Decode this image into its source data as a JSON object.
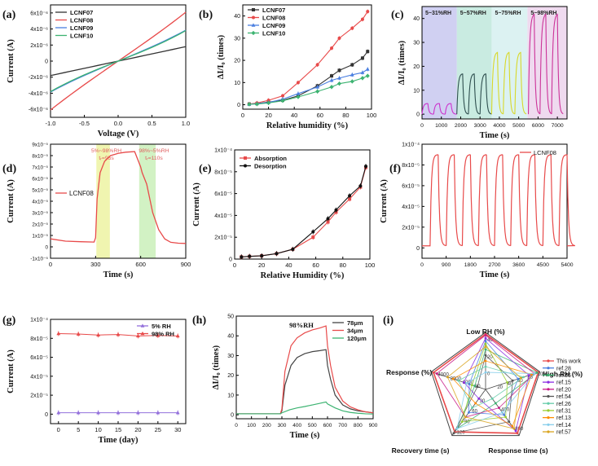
{
  "figure_title": "Humidity sensing performance of LCNF films",
  "chart_data": [
    {
      "id": "a",
      "panel_label": "(a)",
      "type": "line",
      "xlabel": "Voltage (V)",
      "ylabel": "Current (A)",
      "xlim": [
        -1.0,
        1.0
      ],
      "ylim": [
        -7e-06,
        7e-06
      ],
      "x_ticks": [
        "-1.0",
        "-0.5",
        "0.0",
        "0.5",
        "1.0"
      ],
      "y_ticks": [
        "-6x10⁻⁶",
        "-4x10⁻⁶",
        "-2x10⁻⁶",
        "0",
        "2x10⁻⁶",
        "4x10⁻⁶",
        "6x10⁻⁶"
      ],
      "legend_position": "top-left",
      "series": [
        {
          "name": "LCNF07",
          "color": "#333333",
          "slope": 1.8e-06
        },
        {
          "name": "LCNF08",
          "color": "#e84a4a",
          "slope": 5.8e-06
        },
        {
          "name": "LCNF09",
          "color": "#4a7fe0",
          "slope": 3.5e-06
        },
        {
          "name": "LCNF10",
          "color": "#3cb371",
          "slope": 3.3e-06
        }
      ]
    },
    {
      "id": "b",
      "panel_label": "(b)",
      "type": "line",
      "xlabel": "Relative humidity (%)",
      "ylabel": "ΔI/I₀ (times)",
      "xlim": [
        0,
        100
      ],
      "ylim": [
        -2,
        45
      ],
      "x_ticks": [
        "0",
        "20",
        "40",
        "60",
        "80",
        "100"
      ],
      "y_ticks": [
        "0",
        "10",
        "20",
        "30",
        "40"
      ],
      "legend_position": "top-left",
      "x": [
        5,
        11,
        20,
        31,
        43,
        58,
        69,
        75,
        85,
        93,
        97
      ],
      "series": [
        {
          "name": "LCNF07",
          "color": "#333333",
          "values": [
            0.3,
            0.5,
            1.2,
            2.0,
            4.0,
            8.5,
            13.0,
            15.5,
            18.0,
            21.0,
            24.0
          ]
        },
        {
          "name": "LCNF08",
          "color": "#e84a4a",
          "values": [
            0.3,
            0.8,
            2.0,
            4.0,
            10.0,
            18.0,
            25.5,
            30.0,
            34.5,
            38.5,
            42.0
          ]
        },
        {
          "name": "LCNF09",
          "color": "#4a7fe0",
          "values": [
            0.2,
            0.5,
            1.0,
            2.5,
            5.0,
            8.0,
            11.0,
            12.0,
            13.5,
            14.5,
            16.0
          ]
        },
        {
          "name": "LCNF10",
          "color": "#3cb371",
          "values": [
            0.2,
            0.3,
            0.8,
            1.8,
            3.5,
            6.0,
            8.0,
            9.5,
            10.5,
            12.0,
            13.0
          ]
        }
      ]
    },
    {
      "id": "c",
      "panel_label": "(c)",
      "type": "line",
      "xlabel": "Time (s)",
      "ylabel": "ΔI/I₀ (times)",
      "xlim": [
        0,
        7500
      ],
      "ylim": [
        -2,
        45
      ],
      "x_ticks": [
        "0",
        "1000",
        "2000",
        "3000",
        "4000",
        "5000",
        "6000",
        "7000"
      ],
      "y_ticks": [
        "0",
        "10",
        "20",
        "30",
        "40"
      ],
      "regions": [
        {
          "label": "5~31%RH",
          "x_start": 0,
          "x_end": 1800,
          "color": "#c8c8f0"
        },
        {
          "label": "5~57%RH",
          "x_start": 1800,
          "x_end": 3600,
          "color": "#bfe8dc"
        },
        {
          "label": "5~75%RH",
          "x_start": 3600,
          "x_end": 5450,
          "color": "#d6f0f0"
        },
        {
          "label": "5~98%RH",
          "x_start": 5450,
          "x_end": 7500,
          "color": "#ecd4ec"
        }
      ],
      "cycles": [
        {
          "start": 0,
          "period": 600,
          "count": 3,
          "peak": 4.5,
          "color": "#cc33cc"
        },
        {
          "start": 1800,
          "period": 600,
          "count": 3,
          "peak": 17,
          "color": "#2f4f4f"
        },
        {
          "start": 3600,
          "period": 600,
          "count": 3,
          "peak": 26,
          "color": "#d8d82a"
        },
        {
          "start": 5500,
          "period": 600,
          "count": 3,
          "peak": 42,
          "color": "#cc3399"
        }
      ]
    },
    {
      "id": "d",
      "panel_label": "(d)",
      "type": "line",
      "xlabel": "Time (s)",
      "ylabel": "Current (A)",
      "xlim": [
        0,
        900
      ],
      "ylim": [
        -1e-05,
        9e-05
      ],
      "x_ticks": [
        "0",
        "300",
        "600",
        "900"
      ],
      "y_ticks": [
        "-1x10⁻⁵",
        "0",
        "1x10⁻⁵",
        "2x10⁻⁵",
        "3x10⁻⁵",
        "4x10⁻⁵",
        "5x10⁻⁵",
        "6x10⁻⁵",
        "7x10⁻⁵",
        "8x10⁻⁵",
        "9x10⁻⁵"
      ],
      "series_name": "LCNF08",
      "legend_position": "center-left",
      "annotations": [
        {
          "label": "5%~98%RH",
          "sub": "tᵣ=95s",
          "x_start": 305,
          "x_end": 395
        },
        {
          "label": "98%~5%RH",
          "sub": "tᵣ=110s",
          "x_start": 590,
          "x_end": 700
        }
      ],
      "x": [
        0,
        100,
        200,
        290,
        300,
        310,
        330,
        360,
        400,
        450,
        500,
        560,
        600,
        610,
        640,
        680,
        720,
        760,
        800,
        850,
        900
      ],
      "values": [
        7e-06,
        5e-06,
        4.5e-06,
        4.2e-06,
        8e-06,
        4.2e-05,
        6.5e-05,
        7.5e-05,
        8e-05,
        8.2e-05,
        8.3e-05,
        8.35e-05,
        7e-05,
        6.5e-05,
        5.5e-05,
        3e-05,
        1.5e-05,
        7e-06,
        4e-06,
        3.2e-06,
        3e-06
      ]
    },
    {
      "id": "e",
      "panel_label": "(e)",
      "type": "line",
      "xlabel": "Relative Humidity (%)",
      "ylabel": "Current (A)",
      "xlim": [
        0,
        100
      ],
      "ylim": [
        0,
        0.0001
      ],
      "x_ticks": [
        "0",
        "20",
        "40",
        "60",
        "80",
        "100"
      ],
      "y_ticks": [
        "0",
        "2x10⁻⁵",
        "4x10⁻⁵",
        "6x10⁻⁵",
        "8x10⁻⁵",
        "1x10⁻⁴"
      ],
      "legend_position": "top-left",
      "x": [
        5,
        11,
        20,
        31,
        43,
        58,
        69,
        75,
        85,
        93,
        97
      ],
      "series": [
        {
          "name": "Absorption",
          "color": "#e84a4a",
          "values": [
            2e-06,
            2.5e-06,
            3e-06,
            5e-06,
            9e-06,
            2e-05,
            3.4e-05,
            4.3e-05,
            5.5e-05,
            6.6e-05,
            8.4e-05
          ]
        },
        {
          "name": "Desorption",
          "color": "#111111",
          "values": [
            2e-06,
            2.5e-06,
            3e-06,
            5e-06,
            9e-06,
            2.5e-05,
            3.7e-05,
            4.5e-05,
            5.8e-05,
            6.7e-05,
            8.5e-05
          ]
        }
      ]
    },
    {
      "id": "f",
      "panel_label": "(f)",
      "type": "line",
      "xlabel": "Time (s)",
      "ylabel": "Current (A)",
      "xlim": [
        0,
        5400
      ],
      "ylim": [
        -1e-05,
        0.0001
      ],
      "x_ticks": [
        "0",
        "900",
        "1800",
        "2700",
        "3600",
        "4500",
        "5400"
      ],
      "y_ticks": [
        "0",
        "2x10⁻⁵",
        "4x10⁻⁵",
        "6x10⁻⁵",
        "8x10⁻⁵",
        "1x10⁻⁴"
      ],
      "series_name": "LCNF08",
      "legend_position": "top-right",
      "cycles": {
        "start": 300,
        "period": 600,
        "count": 9,
        "peak": 9e-05,
        "base": 2e-06
      }
    },
    {
      "id": "g",
      "panel_label": "(g)",
      "type": "line",
      "xlabel": "Time (day)",
      "ylabel": "Current (A)",
      "xlim": [
        -2,
        32
      ],
      "ylim": [
        -1e-05,
        0.0001
      ],
      "x_ticks": [
        "0",
        "5",
        "10",
        "15",
        "20",
        "25",
        "30"
      ],
      "y_ticks": [
        "0",
        "2x10⁻⁵",
        "4x10⁻⁵",
        "6x10⁻⁵",
        "8x10⁻⁵",
        "1x10⁻⁴"
      ],
      "legend_position": "top-right",
      "x": [
        0,
        5,
        10,
        15,
        20,
        25,
        30
      ],
      "series": [
        {
          "name": "5% RH",
          "color": "#9370db",
          "values": [
            1.5e-06,
            1.5e-06,
            1.5e-06,
            1.5e-06,
            1.5e-06,
            1.5e-06,
            1.5e-06
          ]
        },
        {
          "name": "98% RH",
          "color": "#e84a4a",
          "values": [
            8.5e-05,
            8.45e-05,
            8.35e-05,
            8.4e-05,
            8.25e-05,
            8.3e-05,
            8.25e-05
          ]
        }
      ]
    },
    {
      "id": "h",
      "panel_label": "(h)",
      "type": "line",
      "xlabel": "Time (s)",
      "ylabel": "ΔI/I₀ (times)",
      "xlim": [
        0,
        900
      ],
      "ylim": [
        -2,
        50
      ],
      "x_ticks": [
        "0",
        "100",
        "200",
        "300",
        "400",
        "500",
        "600",
        "700",
        "800",
        "900"
      ],
      "y_ticks": [
        "0",
        "10",
        "20",
        "30",
        "40",
        "50"
      ],
      "annotation": "98%RH",
      "legend_position": "top-right",
      "series": [
        {
          "name": "78μm",
          "color": "#444444",
          "x": [
            0,
            290,
            300,
            320,
            360,
            400,
            450,
            500,
            550,
            590,
            600,
            620,
            650,
            700,
            750,
            800,
            850,
            900
          ],
          "values": [
            0.5,
            0.5,
            2,
            15,
            25,
            29,
            31,
            32,
            32.5,
            33,
            25,
            18,
            10,
            5,
            3,
            2,
            1.5,
            1
          ]
        },
        {
          "name": "34μm",
          "color": "#e84a4a",
          "x": [
            0,
            290,
            300,
            320,
            360,
            400,
            450,
            500,
            550,
            590,
            600,
            620,
            650,
            700,
            750,
            800,
            850,
            900
          ],
          "values": [
            0.5,
            0.5,
            3,
            22,
            35,
            39,
            41.5,
            43,
            44,
            45,
            35,
            25,
            14,
            7,
            4,
            2.5,
            1.5,
            1
          ]
        },
        {
          "name": "120μm",
          "color": "#3cb371",
          "x": [
            0,
            290,
            300,
            350,
            400,
            450,
            500,
            550,
            590,
            600,
            650,
            700,
            750,
            800,
            850,
            900
          ],
          "values": [
            0.5,
            0.5,
            1,
            2.5,
            3.5,
            4.2,
            5,
            5.8,
            6.5,
            5.5,
            3.5,
            2,
            1.2,
            0.8,
            0.5,
            0.4
          ]
        }
      ]
    },
    {
      "id": "i",
      "panel_label": "(i)",
      "type": "radar",
      "axes": [
        {
          "name": "Low RH (%)",
          "ticks": [
            "0",
            "20",
            "40"
          ]
        },
        {
          "name": "High RH (%)",
          "ticks": [
            "20",
            "40",
            "60",
            "80",
            "100"
          ]
        },
        {
          "name": "Response time (s)",
          "ticks": [
            "400",
            "800"
          ]
        },
        {
          "name": "Recovery time (s)",
          "ticks": [
            "30",
            "60",
            "90",
            "120"
          ]
        },
        {
          "name": "Response (%)",
          "ticks": [
            "80",
            "1000",
            "2000",
            "4000"
          ]
        }
      ],
      "series": [
        {
          "name": "This work",
          "color": "#e84a4a",
          "values": [
            0.97,
            0.97,
            0.95,
            0.92,
            0.96
          ]
        },
        {
          "name": "ref.28",
          "color": "#4a7fe0",
          "values": [
            0.85,
            0.6,
            0.55,
            0.5,
            0.3
          ]
        },
        {
          "name": "ref.56",
          "color": "#3cb371",
          "values": [
            0.7,
            0.95,
            0.3,
            0.85,
            0.2
          ]
        },
        {
          "name": "ref.15",
          "color": "#8a2be2",
          "values": [
            0.9,
            0.8,
            0.9,
            0.2,
            0.4
          ]
        },
        {
          "name": "ref.20",
          "color": "#c71585",
          "values": [
            0.95,
            0.9,
            0.4,
            0.6,
            0.9
          ]
        },
        {
          "name": "ref.54",
          "color": "#555555",
          "values": [
            0.6,
            0.5,
            0.7,
            0.95,
            0.15
          ]
        },
        {
          "name": "ref.26",
          "color": "#66cdaa",
          "values": [
            0.4,
            0.7,
            0.2,
            0.4,
            0.5
          ]
        },
        {
          "name": "ref.31",
          "color": "#9acd32",
          "values": [
            0.8,
            0.4,
            0.6,
            0.7,
            0.25
          ]
        },
        {
          "name": "ref.13",
          "color": "#ff8c00",
          "values": [
            0.5,
            0.85,
            0.8,
            0.3,
            0.6
          ]
        },
        {
          "name": "ref.14",
          "color": "#87ceeb",
          "values": [
            0.3,
            0.9,
            0.5,
            0.85,
            0.35
          ]
        },
        {
          "name": "ref.57",
          "color": "#daa520",
          "values": [
            0.75,
            0.65,
            0.85,
            0.6,
            0.7
          ]
        }
      ]
    }
  ]
}
